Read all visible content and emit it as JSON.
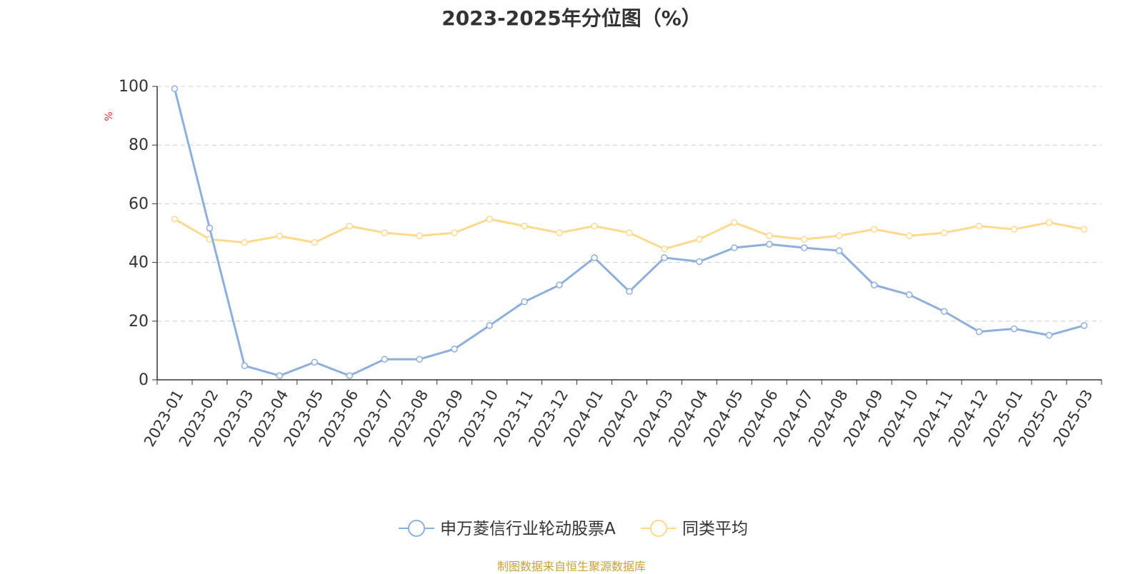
{
  "chart_data": {
    "type": "line",
    "title": "2023-2025年分位图（%）",
    "ylabel": "%",
    "ylim": [
      0,
      100
    ],
    "yticks": [
      0,
      20,
      40,
      60,
      80,
      100
    ],
    "grid": true,
    "legend": "bottom-center",
    "categories": [
      "2023-01",
      "2023-02",
      "2023-03",
      "2023-04",
      "2023-05",
      "2023-06",
      "2023-07",
      "2023-08",
      "2023-09",
      "2023-10",
      "2023-11",
      "2023-12",
      "2024-01",
      "2024-02",
      "2024-03",
      "2024-04",
      "2024-05",
      "2024-06",
      "2024-07",
      "2024-08",
      "2024-09",
      "2024-10",
      "2024-11",
      "2024-12",
      "2025-01",
      "2025-02",
      "2025-03"
    ],
    "series": [
      {
        "name": "申万菱信行业轮动股票A",
        "color": "#8eaedc",
        "values": [
          99.2,
          51.7,
          4.8,
          1.4,
          6.0,
          1.4,
          7.0,
          7.0,
          10.5,
          18.5,
          26.6,
          32.3,
          41.6,
          30.1,
          41.6,
          40.3,
          45.0,
          46.2,
          45.0,
          44.0,
          32.3,
          29.0,
          23.3,
          16.4,
          17.4,
          15.2,
          18.5
        ]
      },
      {
        "name": "同类平均",
        "color": "#fcd98f",
        "values": [
          54.8,
          47.9,
          46.8,
          49.0,
          46.8,
          52.4,
          50.1,
          49.1,
          50.1,
          54.8,
          52.4,
          50.1,
          52.4,
          50.1,
          44.6,
          47.9,
          53.6,
          49.1,
          47.9,
          49.1,
          51.3,
          49.1,
          50.1,
          52.4,
          51.3,
          53.6,
          51.3
        ]
      }
    ]
  },
  "source_note": "制图数据来自恒生聚源数据库"
}
